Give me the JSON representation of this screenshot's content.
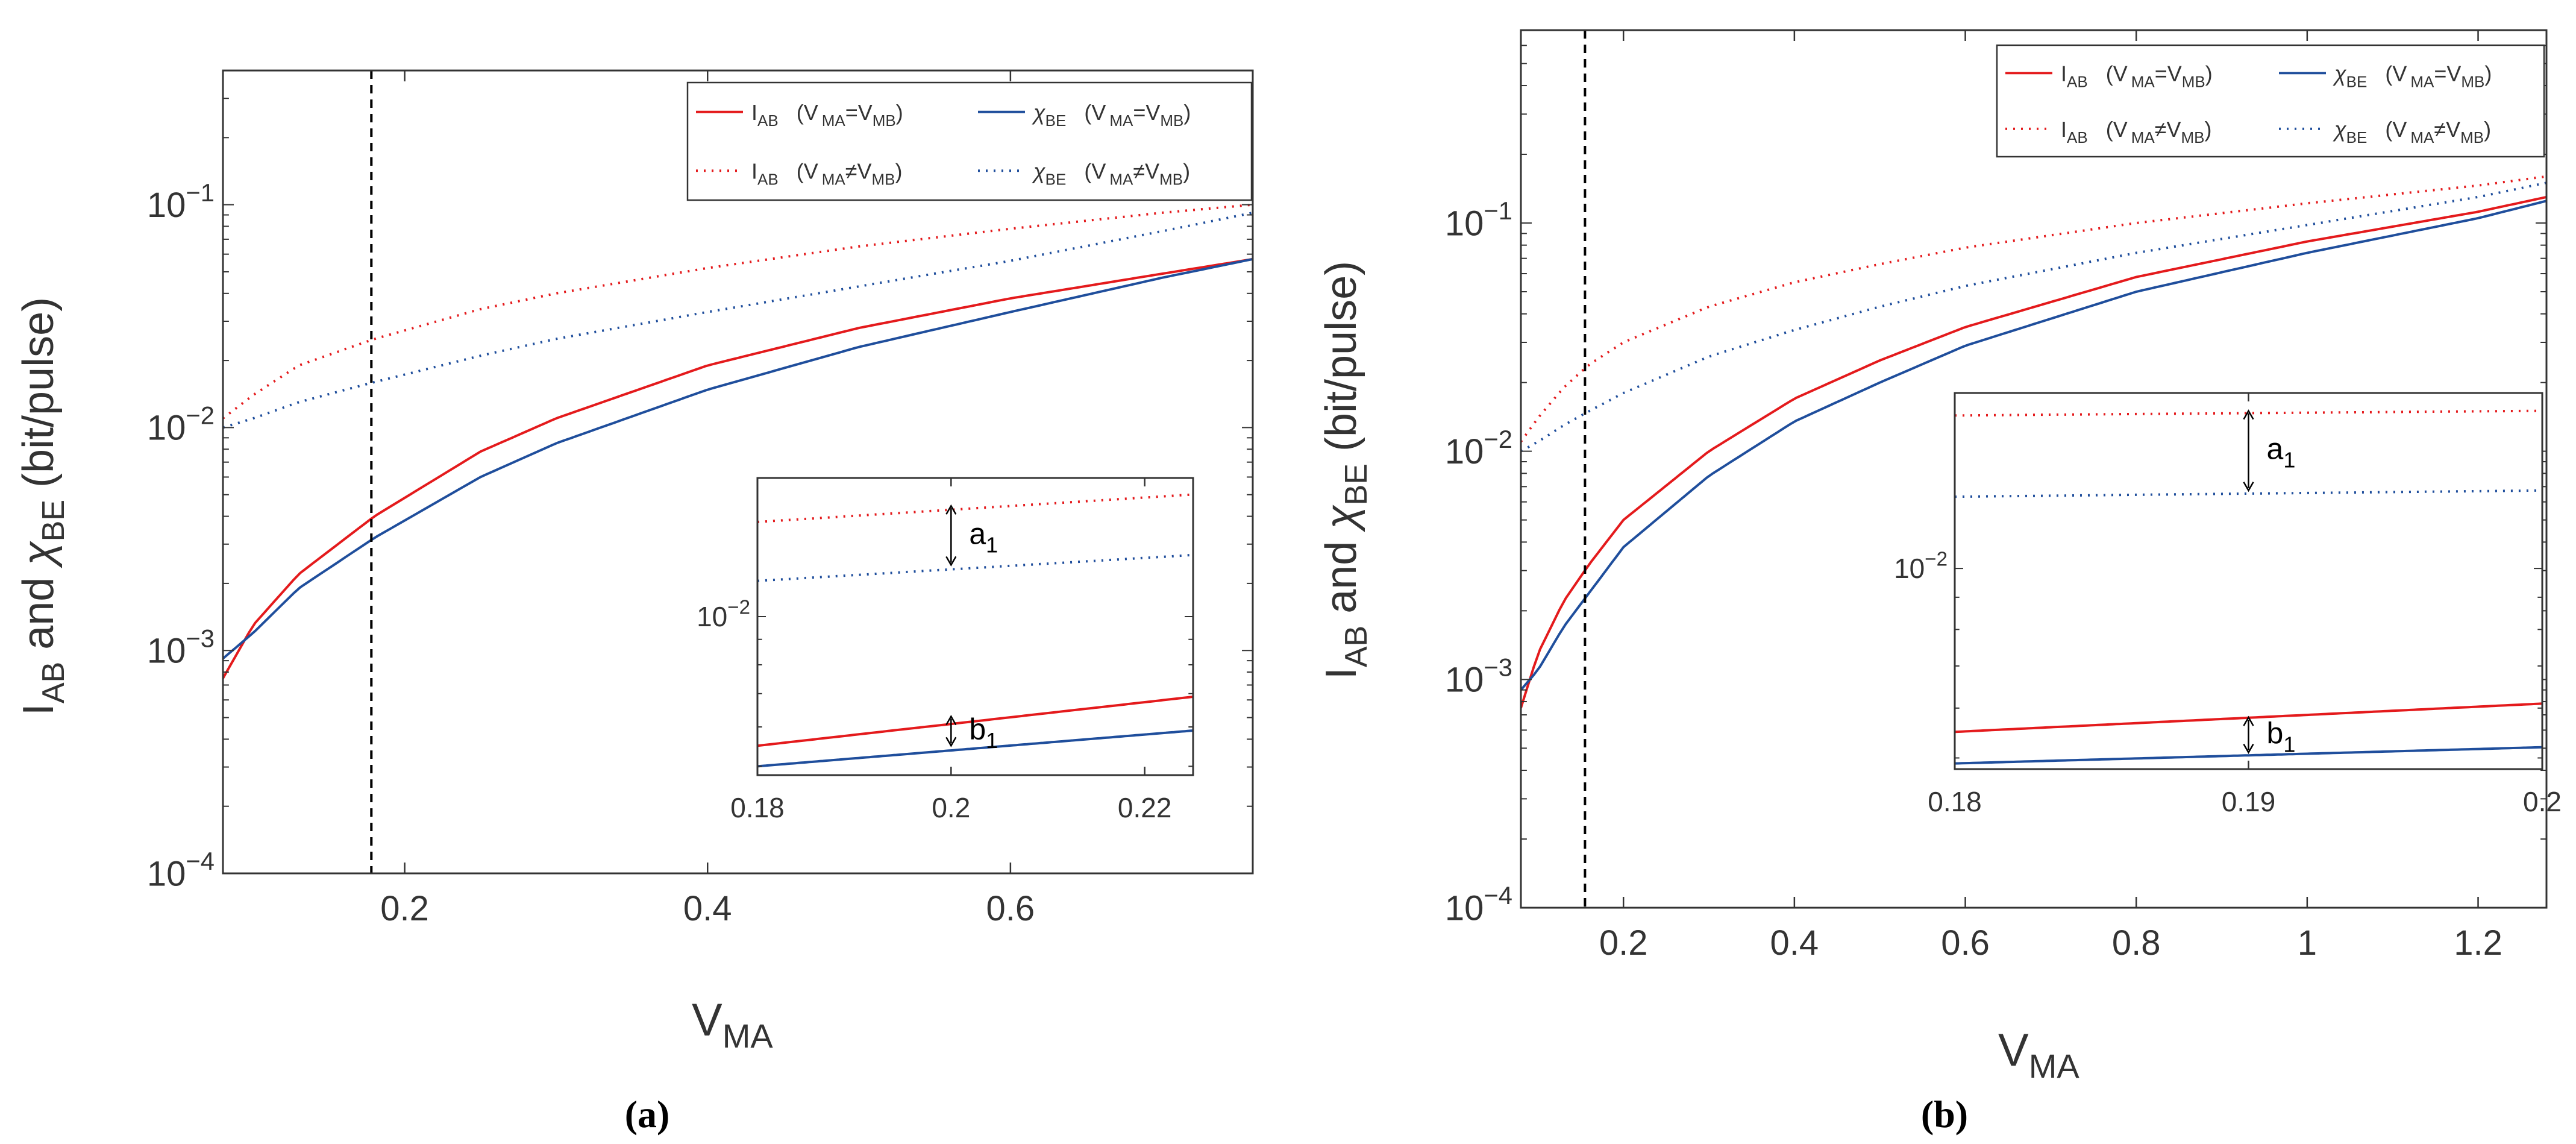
{
  "panels": [
    {
      "caption": "(a)",
      "ylabel": {
        "base": "I",
        "base_sub": "AB",
        "mid": " and ",
        "sym": "χ",
        "sym_sub": "BE",
        "unit": " (bit/pulse)"
      },
      "xlabel": {
        "base": "V",
        "sub": "MA"
      },
      "inset_annotations": {
        "a": "a",
        "a_sub": "1",
        "b": "b",
        "b_sub": "1"
      }
    },
    {
      "caption": "(b)",
      "ylabel": {
        "base": "I",
        "base_sub": "AB",
        "mid": " and ",
        "sym": "χ",
        "sym_sub": "BE",
        "unit": " (bit/pulse)"
      },
      "xlabel": {
        "base": "V",
        "sub": "MA"
      },
      "inset_annotations": {
        "a": "a",
        "a_sub": "1",
        "b": "b",
        "b_sub": "1"
      }
    }
  ],
  "legend": [
    {
      "sym": "I",
      "sym_sub": "AB",
      "cond": "(V",
      "cond_sub1": "MA",
      "op": "=V",
      "cond_sub2": "MB",
      "close": ")",
      "color": "#e41a1c",
      "dash": "solid"
    },
    {
      "sym": "χ",
      "sym_sub": "BE",
      "cond": "(V",
      "cond_sub1": "MA",
      "op": "=V",
      "cond_sub2": "MB",
      "close": ")",
      "color": "#1f4e9c",
      "dash": "solid"
    },
    {
      "sym": "I",
      "sym_sub": "AB",
      "cond": "(V",
      "cond_sub1": "MA",
      "op": "≠V",
      "cond_sub2": "MB",
      "close": ")",
      "color": "#e41a1c",
      "dash": "dotted"
    },
    {
      "sym": "χ",
      "sym_sub": "BE",
      "cond": "(V",
      "cond_sub1": "MA",
      "op": "≠V",
      "cond_sub2": "MB",
      "close": ")",
      "color": "#1f4e9c",
      "dash": "dotted"
    }
  ],
  "chart_data": [
    {
      "type": "line",
      "title": "",
      "xlabel": "V_MA",
      "ylabel": "I_AB and χ_BE (bit/pulse)",
      "xscale": "linear",
      "yscale": "log",
      "xlim": [
        0.08,
        0.76
      ],
      "ylim": [
        0.0001,
        0.4
      ],
      "xticks": [
        0.2,
        0.4,
        0.6
      ],
      "xtick_labels": [
        "0.2",
        "0.4",
        "0.6"
      ],
      "yticks": [
        0.0001,
        0.001,
        0.01,
        0.1
      ],
      "ytick_labels": [
        {
          "m": "10",
          "e": "−4"
        },
        {
          "m": "10",
          "e": "−3"
        },
        {
          "m": "10",
          "e": "−2"
        },
        {
          "m": "10",
          "e": "−1"
        }
      ],
      "vline_x": 0.178,
      "legend_position": "top-right",
      "x": [
        0.08,
        0.1,
        0.13,
        0.18,
        0.25,
        0.3,
        0.4,
        0.5,
        0.6,
        0.7,
        0.76
      ],
      "series": [
        {
          "name": "I_AB (V_MA=V_MB)",
          "color": "#e41a1c",
          "dash": "solid",
          "values": [
            0.00075,
            0.0013,
            0.0022,
            0.004,
            0.0078,
            0.011,
            0.019,
            0.028,
            0.038,
            0.049,
            0.057
          ]
        },
        {
          "name": "χ_BE (V_MA=V_MB)",
          "color": "#1f4e9c",
          "dash": "solid",
          "values": [
            0.00092,
            0.0012,
            0.0019,
            0.0032,
            0.006,
            0.0085,
            0.0148,
            0.023,
            0.033,
            0.047,
            0.057
          ]
        },
        {
          "name": "I_AB (V_MA≠V_MB)",
          "color": "#e41a1c",
          "dash": "dotted",
          "values": [
            0.011,
            0.014,
            0.019,
            0.025,
            0.034,
            0.04,
            0.052,
            0.065,
            0.078,
            0.092,
            0.1
          ]
        },
        {
          "name": "χ_BE (V_MA≠V_MB)",
          "color": "#1f4e9c",
          "dash": "dotted",
          "values": [
            0.01,
            0.011,
            0.013,
            0.016,
            0.021,
            0.025,
            0.033,
            0.043,
            0.056,
            0.076,
            0.092
          ]
        }
      ],
      "inset": {
        "type": "line",
        "xlim": [
          0.18,
          0.225
        ],
        "ylim": [
          0.0048,
          0.019
        ],
        "xticks": [
          0.18,
          0.2,
          0.22
        ],
        "xtick_labels": [
          "0.18",
          "0.2",
          "0.22"
        ],
        "yticks": [
          0.01
        ],
        "ytick_labels": [
          {
            "m": "10",
            "e": "−2"
          }
        ],
        "x": [
          0.18,
          0.225
        ],
        "series": [
          {
            "name": "I_AB (V_MA=V_MB)",
            "color": "#e41a1c",
            "dash": "solid",
            "values": [
              0.0055,
              0.0069
            ]
          },
          {
            "name": "χ_BE (V_MA=V_MB)",
            "color": "#1f4e9c",
            "dash": "solid",
            "values": [
              0.005,
              0.0059
            ]
          },
          {
            "name": "I_AB (V_MA≠V_MB)",
            "color": "#e41a1c",
            "dash": "dotted",
            "values": [
              0.0155,
              0.0176
            ]
          },
          {
            "name": "χ_BE (V_MA≠V_MB)",
            "color": "#1f4e9c",
            "dash": "dotted",
            "values": [
              0.0118,
              0.0133
            ]
          }
        ],
        "arrows": [
          {
            "label": "a1",
            "x": 0.2,
            "y1": 0.0167,
            "y2": 0.0127
          },
          {
            "label": "b1",
            "x": 0.2,
            "y1": 0.0063,
            "y2": 0.0055
          }
        ]
      }
    },
    {
      "type": "line",
      "title": "",
      "xlabel": "V_MA",
      "ylabel": "I_AB and χ_BE (bit/pulse)",
      "xscale": "linear",
      "yscale": "log",
      "xlim": [
        0.08,
        1.28
      ],
      "ylim": [
        0.0001,
        0.7
      ],
      "xticks": [
        0.2,
        0.4,
        0.6,
        0.8,
        1.0,
        1.2
      ],
      "xtick_labels": [
        "0.2",
        "0.4",
        "0.6",
        "0.8",
        "1",
        "1.2"
      ],
      "yticks": [
        0.0001,
        0.001,
        0.01,
        0.1
      ],
      "ytick_labels": [
        {
          "m": "10",
          "e": "−4"
        },
        {
          "m": "10",
          "e": "−3"
        },
        {
          "m": "10",
          "e": "−2"
        },
        {
          "m": "10",
          "e": "−1"
        }
      ],
      "vline_x": 0.155,
      "legend_position": "top-right",
      "x": [
        0.08,
        0.1,
        0.13,
        0.16,
        0.2,
        0.3,
        0.4,
        0.5,
        0.6,
        0.8,
        1.0,
        1.2,
        1.28
      ],
      "series": [
        {
          "name": "I_AB (V_MA=V_MB)",
          "color": "#e41a1c",
          "dash": "solid",
          "values": [
            0.00075,
            0.0013,
            0.0022,
            0.0032,
            0.005,
            0.01,
            0.017,
            0.025,
            0.035,
            0.058,
            0.083,
            0.112,
            0.13
          ]
        },
        {
          "name": "χ_BE (V_MA=V_MB)",
          "color": "#1f4e9c",
          "dash": "solid",
          "values": [
            0.0009,
            0.0011,
            0.0017,
            0.0024,
            0.0038,
            0.0078,
            0.0135,
            0.02,
            0.029,
            0.05,
            0.074,
            0.105,
            0.125
          ]
        },
        {
          "name": "I_AB (V_MA≠V_MB)",
          "color": "#e41a1c",
          "dash": "dotted",
          "values": [
            0.011,
            0.014,
            0.019,
            0.024,
            0.03,
            0.043,
            0.055,
            0.066,
            0.078,
            0.1,
            0.122,
            0.146,
            0.16
          ]
        },
        {
          "name": "χ_BE (V_MA≠V_MB)",
          "color": "#1f4e9c",
          "dash": "dotted",
          "values": [
            0.01,
            0.011,
            0.013,
            0.015,
            0.018,
            0.026,
            0.034,
            0.043,
            0.053,
            0.074,
            0.098,
            0.13,
            0.15
          ]
        }
      ],
      "inset": {
        "type": "line",
        "xlim": [
          0.18,
          0.2
        ],
        "ylim": [
          0.0048,
          0.019
        ],
        "xticks": [
          0.18,
          0.19,
          0.2
        ],
        "xtick_labels": [
          "0.18",
          "0.19",
          "0.2"
        ],
        "yticks": [
          0.01
        ],
        "ytick_labels": [
          {
            "m": "10",
            "e": "−2"
          }
        ],
        "x": [
          0.18,
          0.2
        ],
        "series": [
          {
            "name": "I_AB (V_MA=V_MB)",
            "color": "#e41a1c",
            "dash": "solid",
            "values": [
              0.0055,
              0.0061
            ]
          },
          {
            "name": "χ_BE (V_MA=V_MB)",
            "color": "#1f4e9c",
            "dash": "solid",
            "values": [
              0.0049,
              0.0052
            ]
          },
          {
            "name": "I_AB (V_MA≠V_MB)",
            "color": "#e41a1c",
            "dash": "dotted",
            "values": [
              0.0175,
              0.0178
            ]
          },
          {
            "name": "χ_BE (V_MA≠V_MB)",
            "color": "#1f4e9c",
            "dash": "dotted",
            "values": [
              0.013,
              0.0133
            ]
          }
        ],
        "arrows": [
          {
            "label": "a1",
            "x": 0.19,
            "y1": 0.0178,
            "y2": 0.0133
          },
          {
            "label": "b1",
            "x": 0.19,
            "y1": 0.0058,
            "y2": 0.0051
          }
        ]
      }
    }
  ]
}
